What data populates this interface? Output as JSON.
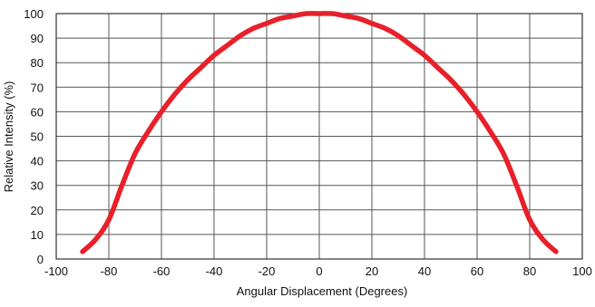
{
  "chart_data": {
    "type": "line",
    "title": "",
    "xlabel": "Angular Displacement (Degrees)",
    "ylabel": "Relative Intensity (%)",
    "xlim": [
      -100,
      100
    ],
    "ylim": [
      0,
      100
    ],
    "xticks": [
      -100,
      -80,
      -60,
      -40,
      -20,
      0,
      20,
      40,
      60,
      80,
      100
    ],
    "yticks": [
      0,
      10,
      20,
      30,
      40,
      50,
      60,
      70,
      80,
      90,
      100
    ],
    "xtick_labels": [
      "-100",
      "-80",
      "-60",
      "-40",
      "-20",
      "0",
      "20",
      "40",
      "60",
      "80",
      "100"
    ],
    "ytick_labels": [
      "0",
      "10",
      "20",
      "30",
      "40",
      "50",
      "60",
      "70",
      "80",
      "90",
      "100"
    ],
    "grid": true,
    "legend": "none",
    "series": [
      {
        "color": "#e8202a",
        "x": [
          -90,
          -85,
          -80,
          -75,
          -70,
          -65,
          -60,
          -55,
          -50,
          -45,
          -40,
          -35,
          -30,
          -25,
          -20,
          -15,
          -10,
          -5,
          0,
          5,
          10,
          15,
          20,
          25,
          30,
          35,
          40,
          45,
          50,
          55,
          60,
          65,
          70,
          75,
          80,
          85,
          90
        ],
        "y": [
          3,
          8,
          16,
          30,
          43,
          52,
          60,
          67,
          73,
          78,
          83,
          87,
          91,
          94,
          96,
          98,
          99,
          100,
          100,
          100,
          99,
          98,
          96,
          94,
          91,
          87,
          83,
          78,
          73,
          67,
          60,
          52,
          43,
          30,
          16,
          8,
          3
        ]
      }
    ]
  }
}
